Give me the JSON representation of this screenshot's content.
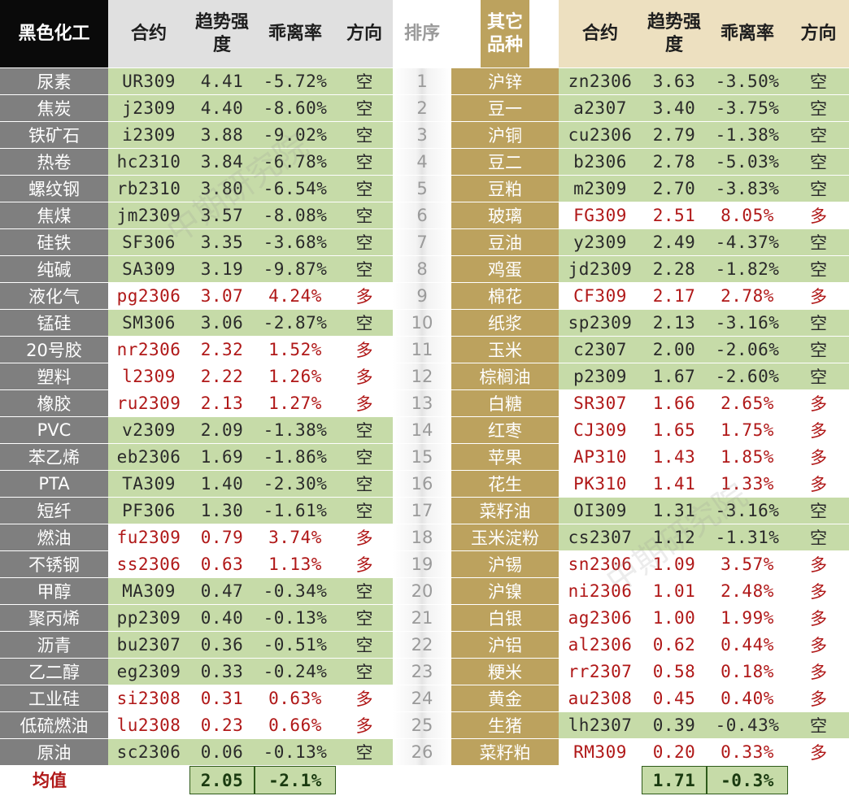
{
  "headers": {
    "left_category": "黑色化工",
    "contract": "合约",
    "trend_strength": "趋势强度",
    "deviation": "乖离率",
    "direction": "方向",
    "rank": "排序",
    "right_category": "其它品种"
  },
  "left_rows": [
    {
      "name": "尿素",
      "contract": "UR309",
      "strength": "4.41",
      "deviation": "-5.72%",
      "direction": "空"
    },
    {
      "name": "焦炭",
      "contract": "j2309",
      "strength": "4.40",
      "deviation": "-8.60%",
      "direction": "空"
    },
    {
      "name": "铁矿石",
      "contract": "i2309",
      "strength": "3.88",
      "deviation": "-9.02%",
      "direction": "空"
    },
    {
      "name": "热卷",
      "contract": "hc2310",
      "strength": "3.84",
      "deviation": "-6.78%",
      "direction": "空"
    },
    {
      "name": "螺纹钢",
      "contract": "rb2310",
      "strength": "3.80",
      "deviation": "-6.54%",
      "direction": "空"
    },
    {
      "name": "焦煤",
      "contract": "jm2309",
      "strength": "3.57",
      "deviation": "-8.08%",
      "direction": "空"
    },
    {
      "name": "硅铁",
      "contract": "SF306",
      "strength": "3.35",
      "deviation": "-3.68%",
      "direction": "空"
    },
    {
      "name": "纯碱",
      "contract": "SA309",
      "strength": "3.19",
      "deviation": "-9.87%",
      "direction": "空"
    },
    {
      "name": "液化气",
      "contract": "pg2306",
      "strength": "3.07",
      "deviation": "4.24%",
      "direction": "多"
    },
    {
      "name": "锰硅",
      "contract": "SM306",
      "strength": "3.06",
      "deviation": "-2.87%",
      "direction": "空"
    },
    {
      "name": "20号胶",
      "contract": "nr2306",
      "strength": "2.32",
      "deviation": "1.52%",
      "direction": "多"
    },
    {
      "name": "塑料",
      "contract": "l2309",
      "strength": "2.22",
      "deviation": "1.26%",
      "direction": "多"
    },
    {
      "name": "橡胶",
      "contract": "ru2309",
      "strength": "2.13",
      "deviation": "1.27%",
      "direction": "多"
    },
    {
      "name": "PVC",
      "contract": "v2309",
      "strength": "2.09",
      "deviation": "-1.38%",
      "direction": "空"
    },
    {
      "name": "苯乙烯",
      "contract": "eb2306",
      "strength": "1.69",
      "deviation": "-1.86%",
      "direction": "空"
    },
    {
      "name": "PTA",
      "contract": "TA309",
      "strength": "1.40",
      "deviation": "-2.30%",
      "direction": "空"
    },
    {
      "name": "短纤",
      "contract": "PF306",
      "strength": "1.30",
      "deviation": "-1.61%",
      "direction": "空"
    },
    {
      "name": "燃油",
      "contract": "fu2309",
      "strength": "0.79",
      "deviation": "3.74%",
      "direction": "多"
    },
    {
      "name": "不锈钢",
      "contract": "ss2306",
      "strength": "0.63",
      "deviation": "1.13%",
      "direction": "多"
    },
    {
      "name": "甲醇",
      "contract": "MA309",
      "strength": "0.47",
      "deviation": "-0.34%",
      "direction": "空"
    },
    {
      "name": "聚丙烯",
      "contract": "pp2309",
      "strength": "0.40",
      "deviation": "-0.13%",
      "direction": "空"
    },
    {
      "name": "沥青",
      "contract": "bu2307",
      "strength": "0.36",
      "deviation": "-0.51%",
      "direction": "空"
    },
    {
      "name": "乙二醇",
      "contract": "eg2309",
      "strength": "0.33",
      "deviation": "-0.24%",
      "direction": "空"
    },
    {
      "name": "工业硅",
      "contract": "si2308",
      "strength": "0.31",
      "deviation": "0.63%",
      "direction": "多"
    },
    {
      "name": "低硫燃油",
      "contract": "lu2308",
      "strength": "0.23",
      "deviation": "0.66%",
      "direction": "多"
    },
    {
      "name": "原油",
      "contract": "sc2306",
      "strength": "0.06",
      "deviation": "-0.13%",
      "direction": "空"
    }
  ],
  "ranks": [
    "1",
    "2",
    "3",
    "4",
    "5",
    "6",
    "7",
    "8",
    "9",
    "10",
    "11",
    "12",
    "13",
    "14",
    "15",
    "16",
    "17",
    "18",
    "19",
    "20",
    "21",
    "22",
    "23",
    "24",
    "25",
    "26"
  ],
  "right_rows": [
    {
      "name": "沪锌",
      "contract": "zn2306",
      "strength": "3.63",
      "deviation": "-3.50%",
      "direction": "空"
    },
    {
      "name": "豆一",
      "contract": "a2307",
      "strength": "3.40",
      "deviation": "-3.75%",
      "direction": "空"
    },
    {
      "name": "沪铜",
      "contract": "cu2306",
      "strength": "2.79",
      "deviation": "-1.38%",
      "direction": "空"
    },
    {
      "name": "豆二",
      "contract": "b2306",
      "strength": "2.78",
      "deviation": "-5.03%",
      "direction": "空"
    },
    {
      "name": "豆粕",
      "contract": "m2309",
      "strength": "2.70",
      "deviation": "-3.83%",
      "direction": "空"
    },
    {
      "name": "玻璃",
      "contract": "FG309",
      "strength": "2.51",
      "deviation": "8.05%",
      "direction": "多"
    },
    {
      "name": "豆油",
      "contract": "y2309",
      "strength": "2.49",
      "deviation": "-4.37%",
      "direction": "空"
    },
    {
      "name": "鸡蛋",
      "contract": "jd2309",
      "strength": "2.28",
      "deviation": "-1.82%",
      "direction": "空"
    },
    {
      "name": "棉花",
      "contract": "CF309",
      "strength": "2.17",
      "deviation": "2.78%",
      "direction": "多"
    },
    {
      "name": "纸浆",
      "contract": "sp2309",
      "strength": "2.13",
      "deviation": "-3.16%",
      "direction": "空"
    },
    {
      "name": "玉米",
      "contract": "c2307",
      "strength": "2.00",
      "deviation": "-2.06%",
      "direction": "空"
    },
    {
      "name": "棕榈油",
      "contract": "p2309",
      "strength": "1.67",
      "deviation": "-2.60%",
      "direction": "空"
    },
    {
      "name": "白糖",
      "contract": "SR307",
      "strength": "1.66",
      "deviation": "2.65%",
      "direction": "多"
    },
    {
      "name": "红枣",
      "contract": "CJ309",
      "strength": "1.65",
      "deviation": "1.75%",
      "direction": "多"
    },
    {
      "name": "苹果",
      "contract": "AP310",
      "strength": "1.43",
      "deviation": "1.85%",
      "direction": "多"
    },
    {
      "name": "花生",
      "contract": "PK310",
      "strength": "1.41",
      "deviation": "1.33%",
      "direction": "多"
    },
    {
      "name": "菜籽油",
      "contract": "OI309",
      "strength": "1.31",
      "deviation": "-3.16%",
      "direction": "空"
    },
    {
      "name": "玉米淀粉",
      "contract": "cs2307",
      "strength": "1.12",
      "deviation": "-1.31%",
      "direction": "空"
    },
    {
      "name": "沪锡",
      "contract": "sn2306",
      "strength": "1.09",
      "deviation": "3.57%",
      "direction": "多"
    },
    {
      "name": "沪镍",
      "contract": "ni2306",
      "strength": "1.01",
      "deviation": "2.48%",
      "direction": "多"
    },
    {
      "name": "白银",
      "contract": "ag2306",
      "strength": "1.00",
      "deviation": "1.99%",
      "direction": "多"
    },
    {
      "name": "沪铝",
      "contract": "al2306",
      "strength": "0.62",
      "deviation": "0.44%",
      "direction": "多"
    },
    {
      "name": "粳米",
      "contract": "rr2307",
      "strength": "0.58",
      "deviation": "0.18%",
      "direction": "多"
    },
    {
      "name": "黄金",
      "contract": "au2308",
      "strength": "0.45",
      "deviation": "0.40%",
      "direction": "多"
    },
    {
      "name": "生猪",
      "contract": "lh2307",
      "strength": "0.39",
      "deviation": "-0.43%",
      "direction": "空"
    },
    {
      "name": "菜籽粕",
      "contract": "RM309",
      "strength": "0.20",
      "deviation": "0.33%",
      "direction": "多"
    }
  ],
  "average": {
    "label": "均值",
    "left_strength": "2.05",
    "left_deviation": "-2.1%",
    "right_strength": "1.71",
    "right_deviation": "-0.3%"
  },
  "watermark": "中期研究院",
  "colors": {
    "short_bg": "#c6dba8",
    "long_text": "#b01818",
    "left_header": "#0a0a0a",
    "right_header": "#bca25e"
  }
}
